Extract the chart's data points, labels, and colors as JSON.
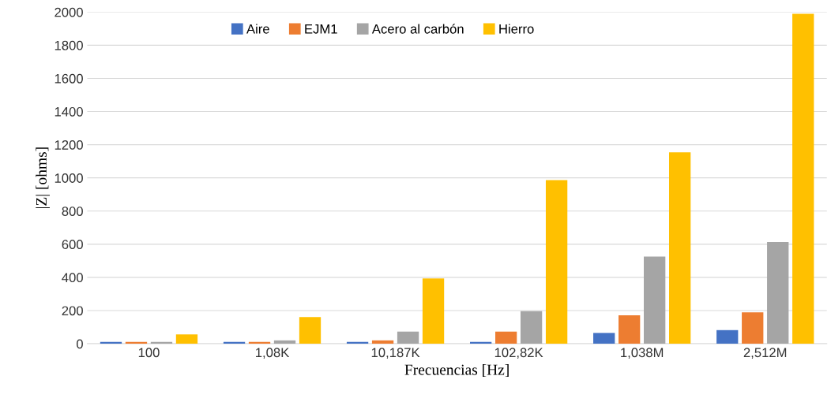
{
  "chart_data": {
    "type": "bar",
    "xlabel": "Frecuencias [Hz]",
    "ylabel": "|Z| [ohms]",
    "categories": [
      "100",
      "1,08K",
      "10,187K",
      "102,82K",
      "1,038M",
      "2,512M"
    ],
    "series": [
      {
        "name": "Aire",
        "color": "#4472c4",
        "values": [
          11,
          11,
          11,
          11,
          65,
          82
        ]
      },
      {
        "name": "EJM1",
        "color": "#ed7d31",
        "values": [
          11,
          11,
          20,
          73,
          171,
          189
        ]
      },
      {
        "name": "Acero al carbón",
        "color": "#a5a5a5",
        "values": [
          11,
          20,
          73,
          196,
          526,
          614
        ]
      },
      {
        "name": "Hierro",
        "color": "#ffc000",
        "values": [
          56,
          161,
          393,
          987,
          1154,
          1989
        ]
      }
    ],
    "ylim": [
      0,
      2000
    ],
    "yticks": [
      0,
      200,
      400,
      600,
      800,
      1000,
      1200,
      1400,
      1600,
      1800,
      2000
    ],
    "grid": "y",
    "legend": "top"
  }
}
